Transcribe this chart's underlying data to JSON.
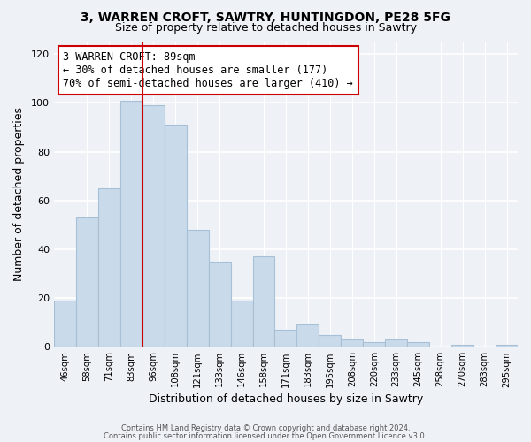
{
  "title1": "3, WARREN CROFT, SAWTRY, HUNTINGDON, PE28 5FG",
  "title2": "Size of property relative to detached houses in Sawtry",
  "xlabel": "Distribution of detached houses by size in Sawtry",
  "ylabel": "Number of detached properties",
  "bar_labels": [
    "46sqm",
    "58sqm",
    "71sqm",
    "83sqm",
    "96sqm",
    "108sqm",
    "121sqm",
    "133sqm",
    "146sqm",
    "158sqm",
    "171sqm",
    "183sqm",
    "195sqm",
    "208sqm",
    "220sqm",
    "233sqm",
    "245sqm",
    "258sqm",
    "270sqm",
    "283sqm",
    "295sqm"
  ],
  "bar_values": [
    19,
    53,
    65,
    101,
    99,
    91,
    48,
    35,
    19,
    37,
    7,
    9,
    5,
    3,
    2,
    3,
    2,
    0,
    1,
    0,
    1
  ],
  "bar_color": "#c9daea",
  "bar_edge_color": "#a8c0d6",
  "vline_x_index": 4,
  "vline_color": "#cc0000",
  "annotation_line1": "3 WARREN CROFT: 89sqm",
  "annotation_line2": "← 30% of detached houses are smaller (177)",
  "annotation_line3": "70% of semi-detached houses are larger (410) →",
  "annotation_box_color": "#ffffff",
  "annotation_box_edge": "#cc0000",
  "ylim": [
    0,
    125
  ],
  "yticks": [
    0,
    20,
    40,
    60,
    80,
    100,
    120
  ],
  "background_color": "#eef2f7",
  "grid_color": "#ffffff",
  "footer1": "Contains HM Land Registry data © Crown copyright and database right 2024.",
  "footer2": "Contains public sector information licensed under the Open Government Licence v3.0."
}
